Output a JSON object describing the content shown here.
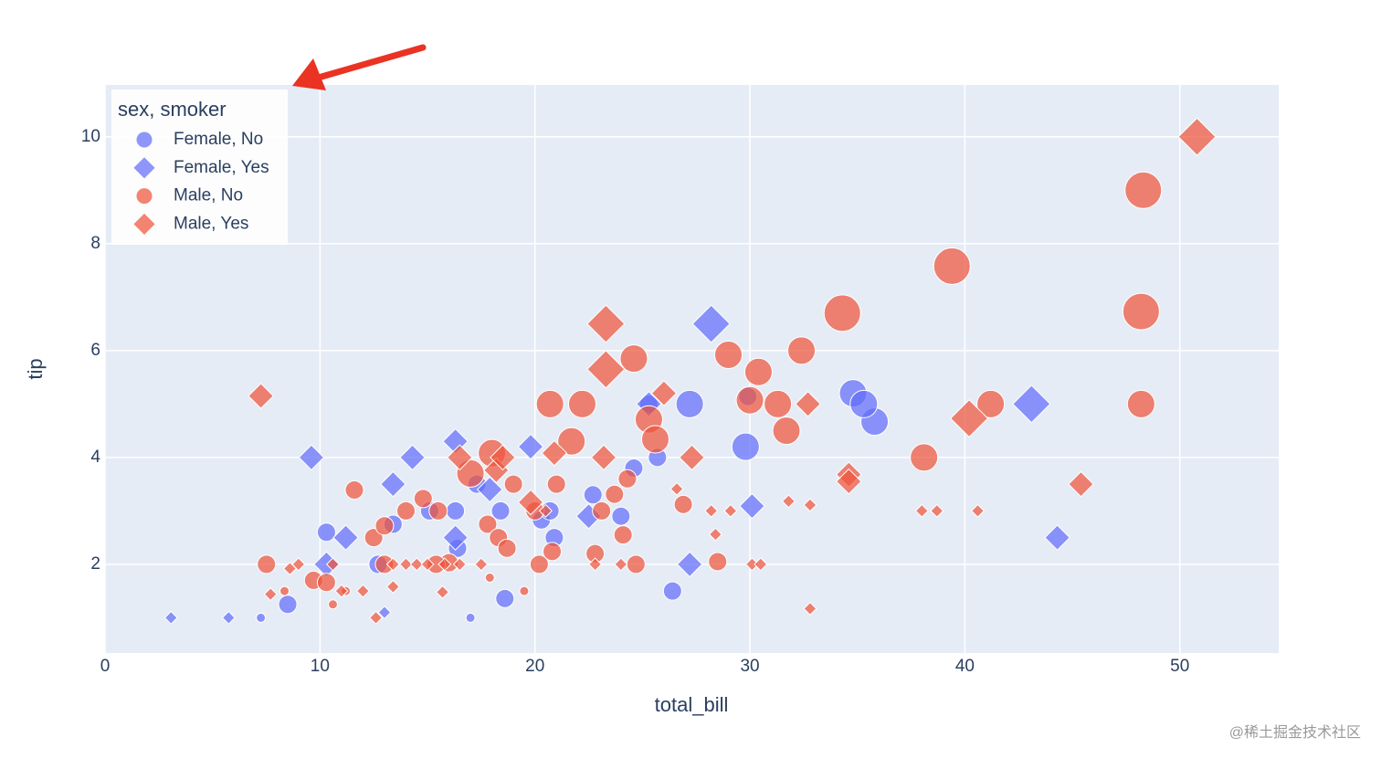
{
  "chart_data": {
    "type": "scatter",
    "x_label": "total_bill",
    "y_label": "tip",
    "legend_title": "sex, smoker",
    "legend_position": "top-left",
    "xlim": [
      0,
      54.6
    ],
    "ylim": [
      0.34,
      10.97
    ],
    "xticks": [
      0,
      10,
      20,
      30,
      40,
      50
    ],
    "yticks": [
      2,
      4,
      6,
      8,
      10
    ],
    "grid": true,
    "opacity": 0.72,
    "series": [
      {
        "name": "Female, No",
        "color": "#636efa",
        "symbol": "circle",
        "x": [
          35.8,
          34.8,
          35.3,
          27.2,
          29.9,
          29.8,
          25.3,
          25.7,
          24.6,
          26.4,
          17.0,
          18.6,
          7.25,
          8.5,
          10.3,
          16.3,
          17.3,
          18.4,
          20.3,
          20.7,
          24.0,
          22.7,
          13.4,
          12.7,
          15.1,
          16.4,
          20.9
        ],
        "y": [
          4.67,
          5.2,
          5.0,
          5.0,
          5.14,
          4.2,
          5.0,
          4.0,
          3.8,
          1.5,
          1.0,
          1.36,
          1.0,
          1.25,
          2.6,
          3.0,
          3.5,
          3.0,
          2.83,
          3.0,
          2.9,
          3.3,
          2.75,
          2.0,
          3.0,
          2.3,
          2.5
        ],
        "size": [
          3,
          3,
          3,
          3,
          2,
          3,
          2,
          2,
          2,
          2,
          1,
          2,
          1,
          2,
          2,
          2,
          2,
          2,
          2,
          2,
          2,
          2,
          2,
          2,
          2,
          2,
          2
        ]
      },
      {
        "name": "Female, Yes",
        "color": "#636efa",
        "symbol": "diamond",
        "x": [
          3.07,
          5.75,
          9.6,
          14.3,
          13.4,
          16.3,
          28.2,
          43.1,
          44.3,
          30.1,
          27.2,
          13.0,
          11.2,
          16.3,
          19.8,
          22.5,
          25.3,
          10.3,
          17.9
        ],
        "y": [
          1.0,
          1.0,
          4.0,
          4.0,
          3.5,
          4.3,
          6.5,
          5.0,
          2.5,
          3.09,
          2.0,
          1.1,
          2.5,
          2.5,
          4.2,
          2.9,
          5.0,
          2.0,
          3.4
        ],
        "size": [
          1,
          1,
          2,
          2,
          2,
          2,
          3,
          3,
          2,
          2,
          2,
          1,
          2,
          2,
          2,
          2,
          2,
          2,
          2
        ]
      },
      {
        "name": "Male, No",
        "color": "#ef553b",
        "symbol": "circle",
        "x": [
          48.3,
          39.4,
          48.2,
          34.3,
          48.2,
          41.2,
          29.0,
          30.4,
          32.4,
          31.3,
          31.7,
          38.1,
          30.0,
          24.6,
          25.3,
          25.6,
          22.2,
          20.7,
          21.7,
          11.6,
          7.51,
          8.35,
          9.7,
          10.3,
          10.6,
          11.2,
          12.5,
          13.0,
          14.0,
          14.8,
          15.5,
          17.8,
          18.3,
          18.7,
          19.5,
          20.2,
          20.8,
          21.0,
          22.8,
          23.1,
          23.7,
          24.3,
          24.1,
          26.9,
          28.5,
          17.0,
          18.0,
          19.0,
          20.0,
          16.0,
          15.4,
          17.9,
          24.7,
          13.0
        ],
        "y": [
          9.0,
          7.58,
          6.73,
          6.7,
          5.0,
          5.0,
          5.92,
          5.6,
          6.0,
          5.0,
          4.5,
          4.0,
          5.07,
          5.85,
          4.71,
          4.34,
          5.0,
          5.0,
          4.3,
          3.39,
          2.0,
          1.5,
          1.7,
          1.66,
          1.25,
          1.5,
          2.5,
          2.0,
          3.0,
          3.23,
          3.0,
          2.75,
          2.5,
          2.3,
          1.5,
          2.0,
          2.24,
          3.5,
          2.2,
          3.0,
          3.31,
          3.6,
          2.55,
          3.12,
          2.05,
          3.7,
          4.08,
          3.5,
          3.0,
          2.03,
          2.0,
          1.75,
          2.0,
          2.72
        ],
        "size": [
          4,
          4,
          4,
          4,
          3,
          3,
          3,
          3,
          3,
          3,
          3,
          3,
          3,
          3,
          3,
          3,
          3,
          3,
          3,
          2,
          2,
          1,
          2,
          2,
          1,
          1,
          2,
          2,
          2,
          2,
          2,
          2,
          2,
          2,
          1,
          2,
          2,
          2,
          2,
          2,
          2,
          2,
          2,
          2,
          2,
          3,
          3,
          2,
          2,
          2,
          2,
          1,
          2,
          2
        ]
      },
      {
        "name": "Male, Yes",
        "color": "#ef553b",
        "symbol": "diamond",
        "x": [
          50.8,
          7.25,
          23.3,
          23.3,
          26.0,
          32.7,
          40.2,
          34.6,
          34.6,
          45.4,
          38.0,
          38.7,
          40.6,
          32.8,
          31.8,
          28.2,
          29.1,
          28.4,
          27.3,
          26.6,
          23.2,
          20.9,
          16.5,
          18.2,
          18.5,
          19.8,
          22.8,
          24.0,
          30.1,
          30.5,
          32.8,
          12.6,
          13.4,
          15.7,
          7.7,
          8.6,
          9.0,
          10.6,
          11.0,
          12.0,
          13.4,
          14.0,
          14.5,
          15.0,
          15.8,
          16.5,
          17.5,
          20.5
        ],
        "y": [
          10.0,
          5.15,
          6.5,
          5.65,
          5.2,
          5.0,
          4.73,
          3.68,
          3.55,
          3.5,
          3.0,
          3.0,
          3.0,
          3.11,
          3.18,
          3.0,
          3.0,
          2.56,
          4.0,
          3.41,
          4.0,
          4.08,
          4.0,
          3.76,
          4.0,
          3.16,
          2.0,
          2.0,
          2.0,
          2.0,
          1.17,
          1.0,
          1.58,
          1.48,
          1.44,
          1.92,
          2.0,
          2.0,
          1.5,
          1.5,
          2.0,
          2.0,
          2.0,
          2.0,
          2.0,
          2.0,
          2.0,
          3.0
        ],
        "size": [
          3,
          2,
          3,
          3,
          2,
          2,
          3,
          2,
          2,
          2,
          1,
          1,
          1,
          1,
          1,
          1,
          1,
          1,
          2,
          1,
          2,
          2,
          2,
          2,
          2,
          2,
          1,
          1,
          1,
          1,
          1,
          1,
          1,
          1,
          1,
          1,
          1,
          1,
          1,
          1,
          1,
          1,
          1,
          1,
          1,
          1,
          1,
          1
        ]
      }
    ]
  },
  "watermark": "@稀土掘金技术社区"
}
